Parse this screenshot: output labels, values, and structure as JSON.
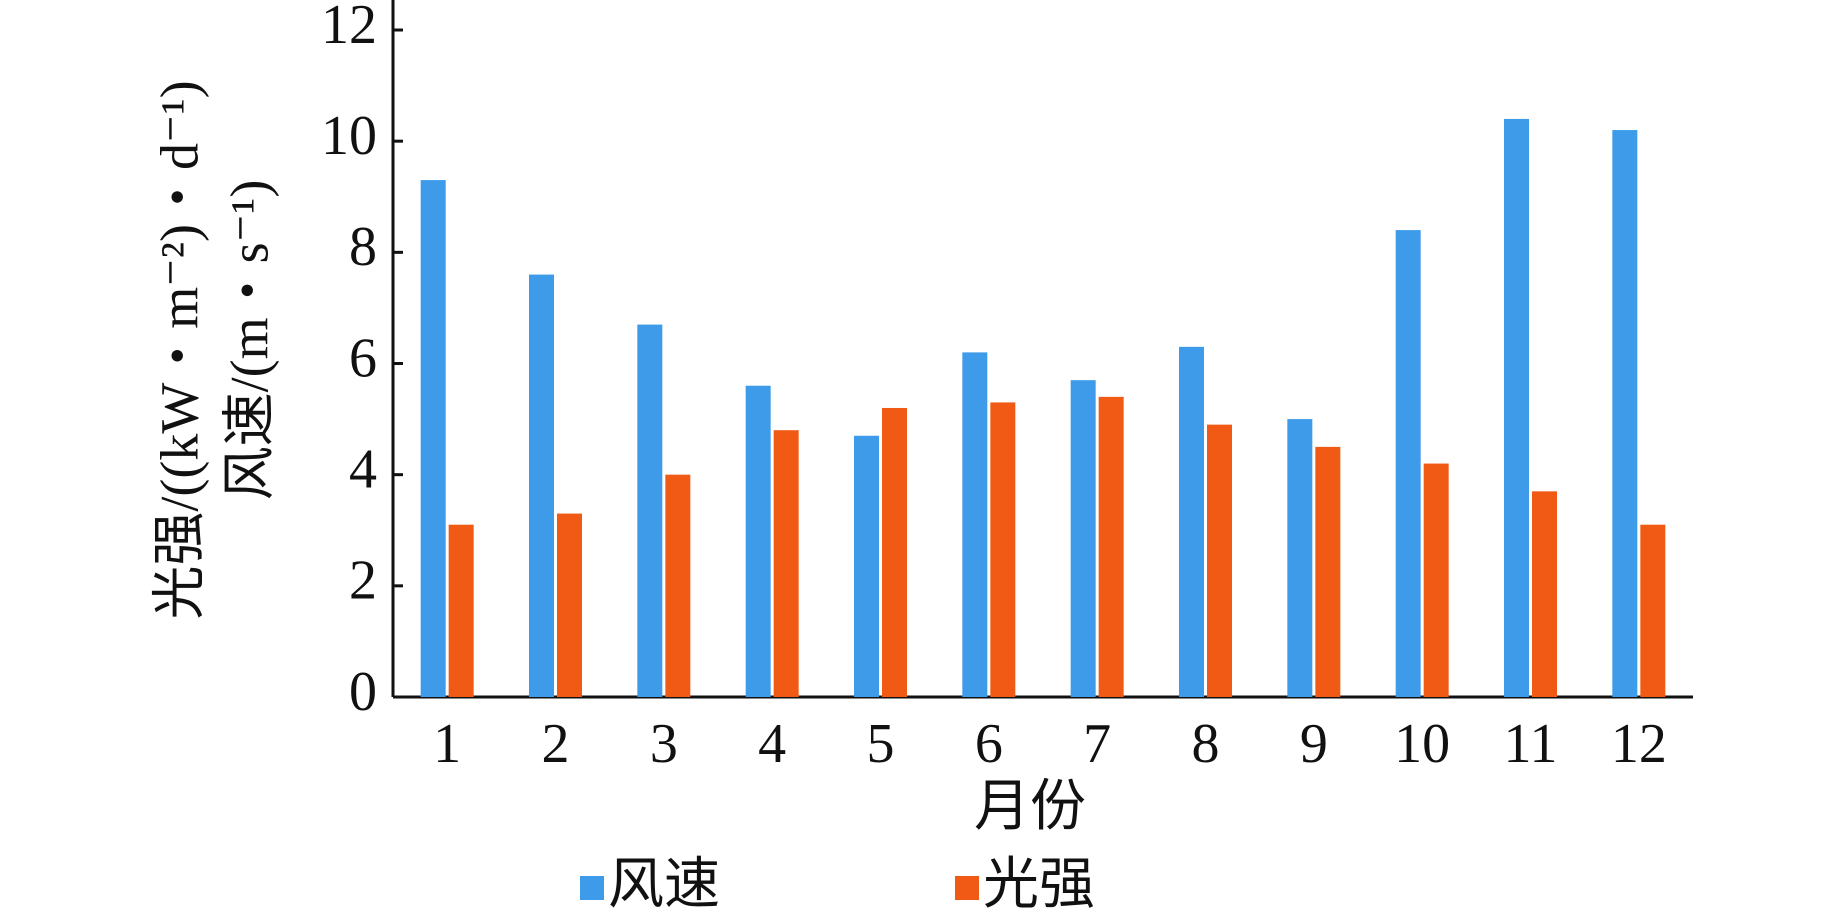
{
  "chart_data": {
    "type": "bar",
    "x_label": "月份",
    "y_label": [
      "光强/((kW・m⁻²)・d⁻¹)",
      "风速/(m・s⁻¹)"
    ],
    "categories": [
      "1",
      "2",
      "3",
      "4",
      "5",
      "6",
      "7",
      "8",
      "9",
      "10",
      "11",
      "12"
    ],
    "series": [
      {
        "name": "风速",
        "color": "#3d9be9",
        "values": [
          9.3,
          7.6,
          6.7,
          5.6,
          4.7,
          6.2,
          5.7,
          6.3,
          5.0,
          8.4,
          10.4,
          10.2
        ]
      },
      {
        "name": "光强",
        "color": "#f05a14",
        "values": [
          3.1,
          3.3,
          4.0,
          4.8,
          5.2,
          5.3,
          5.4,
          4.9,
          4.5,
          4.2,
          3.7,
          3.1
        ]
      }
    ],
    "ylim": [
      0,
      12
    ],
    "yticks": [
      0,
      2,
      4,
      6,
      8,
      10,
      12
    ],
    "grid": false,
    "legend": "bottom"
  }
}
